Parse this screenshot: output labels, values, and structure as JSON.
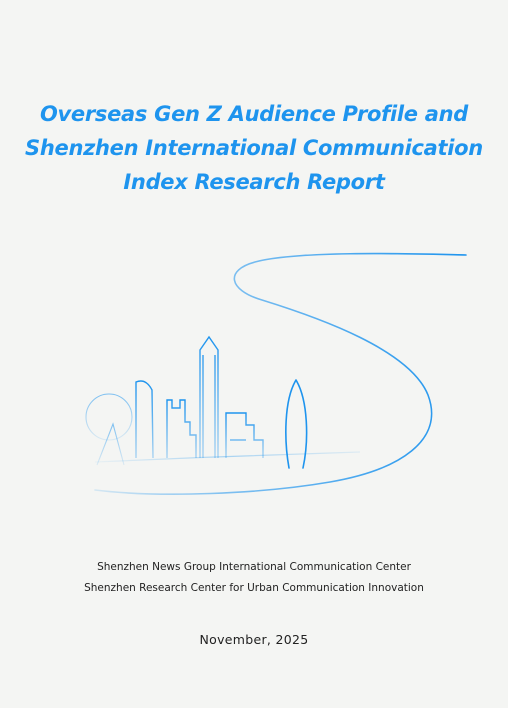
{
  "cover": {
    "title_lines": [
      "Overseas Gen Z Audience Profile and",
      "Shenzhen International Communication",
      "Index Research Report"
    ],
    "organizations": [
      "Shenzhen News Group  International Communication Center",
      "Shenzhen Research Center for Urban Communication Innovation"
    ],
    "date": "November, 2025"
  },
  "colors": {
    "background": "#f4f5f3",
    "title": "#1e94ee",
    "illustration": "#1e94ee",
    "text": "#222222"
  },
  "icons": {
    "illustration": "shenzhen-skyline-line-art"
  }
}
